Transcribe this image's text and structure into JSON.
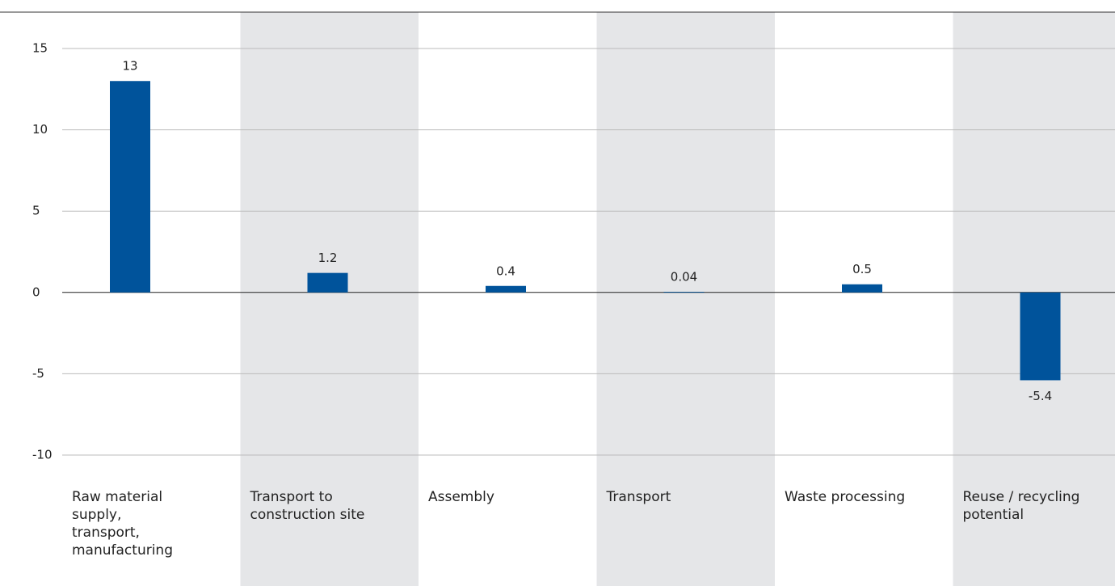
{
  "chart_data": {
    "type": "bar",
    "categories": [
      "Raw material supply, transport, manufacturing",
      "Transport to construction site",
      "Assembly",
      "Transport",
      "Waste processing",
      "Reuse / recycling potential"
    ],
    "values": [
      13,
      1.2,
      0.4,
      0.04,
      0.5,
      -5.4
    ],
    "color": "#00539b",
    "ylim": [
      -10,
      15
    ],
    "yticks": [
      -10,
      -5,
      0,
      5,
      10,
      15
    ],
    "grid": true
  }
}
